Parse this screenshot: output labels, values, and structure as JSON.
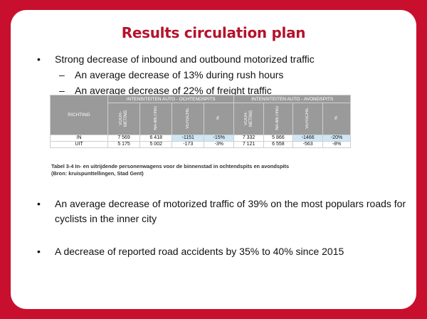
{
  "title": "Results circulation plan",
  "bullets": [
    "Strong decrease of inbound and outbound motorized traffic",
    "An average decrease of motorized traffic of 39% on the most populars roads for cyclists in the inner city",
    "A decrease of reported road accidents by 35% to 40% since 2015"
  ],
  "sub_bullets": [
    "An average decrease of 13% during rush hours",
    "An average decrease of 22% of freight traffic"
  ],
  "bullet_symbol": "•",
  "dash_symbol": "–",
  "table": {
    "richting_label": "RICHTING",
    "group_morning": "INTENSITEITEN AUTO - OCHTENDSPITS",
    "group_evening": "INTENSITEITEN AUTO - AVONDSPITS",
    "cols": [
      "VOOR-METING",
      "NA-METING",
      "VERSCHIL",
      "%",
      "VOOR-METING",
      "NA-METING",
      "VERSCHIL",
      "%"
    ],
    "rows": [
      {
        "label": "IN",
        "cells": [
          "7 569",
          "6 418",
          "-1151",
          "-15%",
          "7 332",
          "5 866",
          "-1466",
          "-20%"
        ]
      },
      {
        "label": "UIT",
        "cells": [
          "5 175",
          "5 002",
          "-173",
          "-3%",
          "7 121",
          "6 558",
          "-563",
          "-8%"
        ]
      }
    ],
    "caption_line1": "Tabel 3-4 In- en uitrijdende personenwagens voor de binnenstad in ochtendspits en avondspits",
    "caption_line2": "(Bron: kruispunttellingen, Stad Gent)"
  },
  "colors": {
    "frame": "#c8102e",
    "title": "#b5122c",
    "header": "#9a9a9a",
    "highlight": "#cfe7f7"
  }
}
